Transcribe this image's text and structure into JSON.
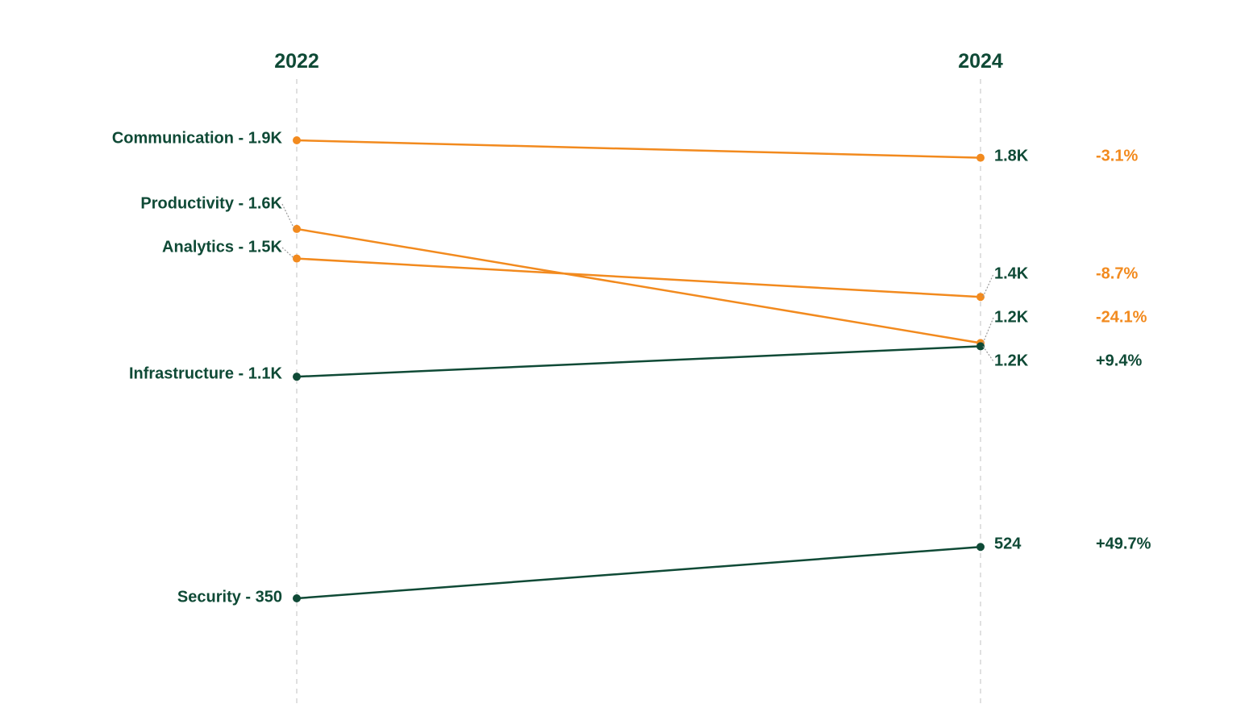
{
  "colors": {
    "decline": "#f28a1e",
    "growth": "#0f4a36",
    "axis": "#d6d6d6",
    "leader": "#9a9a9a"
  },
  "chart_data": {
    "type": "slope",
    "periods": [
      "2022",
      "2024"
    ],
    "series": [
      {
        "name": "Communication",
        "start": 1900,
        "end": 1841,
        "start_label": "Communication - 1.9K",
        "end_label": "1.8K",
        "change": "-3.1%",
        "trend": "decline"
      },
      {
        "name": "Productivity",
        "start": 1600,
        "end": 1214,
        "start_label": "Productivity - 1.6K",
        "end_label": "1.2K",
        "change": "-24.1%",
        "trend": "decline"
      },
      {
        "name": "Analytics",
        "start": 1500,
        "end": 1370,
        "start_label": "Analytics - 1.5K",
        "end_label": "1.4K",
        "change": "-8.7%",
        "trend": "decline"
      },
      {
        "name": "Infrastructure",
        "start": 1100,
        "end": 1203,
        "start_label": "Infrastructure - 1.1K",
        "end_label": "1.2K",
        "change": "+9.4%",
        "trend": "growth"
      },
      {
        "name": "Security",
        "start": 350,
        "end": 524,
        "start_label": "Security - 350",
        "end_label": "524",
        "change": "+49.7%",
        "trend": "growth"
      }
    ]
  }
}
